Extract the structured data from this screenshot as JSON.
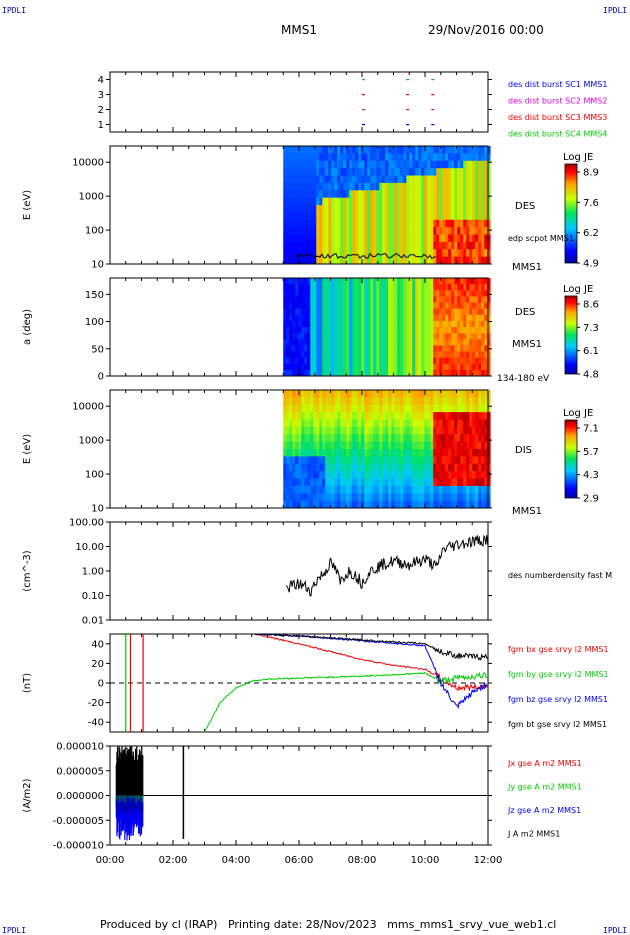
{
  "header": {
    "corner_label": "IPDLI",
    "spacecraft": "MMS1",
    "date": "29/Nov/2016 00:00"
  },
  "footer": {
    "text": "Produced by cl (IRAP)   Printing date: 28/Nov/2023   mms_mms1_srvy_vue_web1.cl"
  },
  "colors": {
    "blue": "#0000ee",
    "magenta": "#dd00dd",
    "red": "#ee0000",
    "green": "#00cc00",
    "black": "#000000"
  },
  "chart_data": [
    {
      "type": "scatter",
      "panel": "burst",
      "ylim": [
        0.5,
        4.5
      ],
      "yticks": [
        "1",
        "2",
        "3",
        "4"
      ],
      "series": [
        {
          "name": "des dist burst SC1 MMS1",
          "color": "#0000ee",
          "y": 1,
          "x": [
            8.0,
            9.4,
            10.2
          ]
        },
        {
          "name": "des dist burst SC2 MMS2",
          "color": "#dd00dd",
          "y": 2,
          "x": [
            8.0,
            9.4,
            10.2
          ]
        },
        {
          "name": "des dist burst SC3 MMS3",
          "color": "#ee0000",
          "y": 3,
          "x": [
            8.0,
            9.4,
            10.2
          ]
        },
        {
          "name": "des dist burst SC4 MMS4",
          "color": "#00cc00",
          "y": 4,
          "x": [
            8.0,
            9.4,
            10.2
          ]
        }
      ]
    },
    {
      "type": "heatmap",
      "panel": "des-energy",
      "ylabel": "E (eV)",
      "ylog": true,
      "ylim": [
        10,
        30000
      ],
      "yticks": [
        "10",
        "100",
        "1000",
        "10000"
      ],
      "xlim": [
        0,
        12
      ],
      "data_start": 5.5,
      "label": "DES",
      "sc_label": "MMS1",
      "overlay_label": "edp scpot MMS1",
      "colorbar": {
        "title": "Log JE",
        "ticks": [
          "8.9",
          "7.6",
          "6.2",
          "4.9"
        ]
      }
    },
    {
      "type": "heatmap",
      "panel": "des-pitch",
      "ylabel": "a (deg)",
      "ylim": [
        0,
        180
      ],
      "yticks": [
        "0",
        "50",
        "100",
        "150"
      ],
      "xlim": [
        0,
        12
      ],
      "data_start": 5.5,
      "label": "DES",
      "sc_label": "MMS1",
      "energy_label": "134-180 eV",
      "colorbar": {
        "title": "Log JE",
        "ticks": [
          "8.6",
          "7.3",
          "6.1",
          "4.8"
        ]
      }
    },
    {
      "type": "heatmap",
      "panel": "dis-energy",
      "ylabel": "E (eV)",
      "ylog": true,
      "ylim": [
        10,
        30000
      ],
      "yticks": [
        "10",
        "100",
        "1000",
        "10000"
      ],
      "xlim": [
        0,
        12
      ],
      "data_start": 5.5,
      "label": "DIS",
      "sc_label": "MMS1",
      "colorbar": {
        "title": "Log JE",
        "ticks": [
          "7.1",
          "5.7",
          "4.3",
          "2.9"
        ]
      }
    },
    {
      "type": "line",
      "panel": "density",
      "ylabel": "(cm^-3)",
      "ylog": true,
      "ylim": [
        0.01,
        100
      ],
      "yticks": [
        "0.01",
        "0.10",
        "1.00",
        "10.00",
        "100.00"
      ],
      "series": [
        {
          "name": "des numberdensity fast M",
          "color": "#000000",
          "x": [
            5.6,
            6.0,
            6.4,
            6.8,
            7.0,
            7.3,
            7.6,
            8.0,
            8.5,
            9.0,
            9.5,
            10.0,
            10.4,
            10.6,
            11.0,
            11.5,
            12.0
          ],
          "y": [
            0.2,
            0.3,
            0.15,
            0.8,
            2.0,
            0.3,
            1.0,
            0.3,
            1.5,
            2.5,
            1.8,
            3.0,
            1.2,
            8.0,
            12.0,
            16.0,
            20.0
          ]
        }
      ]
    },
    {
      "type": "line",
      "panel": "magnetic",
      "ylabel": "(nT)",
      "ylim": [
        -50,
        50
      ],
      "yticks": [
        "-40",
        "-20",
        "0",
        "20",
        "40"
      ],
      "series": [
        {
          "name": "fgm bx gse srvy l2 MMS1",
          "color": "#ee0000",
          "x": [
            4.6,
            6.0,
            7.0,
            8.0,
            9.0,
            10.0,
            10.5,
            11.0,
            12.0
          ],
          "y": [
            50,
            40,
            32,
            24,
            18,
            14,
            5,
            -5,
            -3
          ]
        },
        {
          "name": "fgm by gse srvy l2 MMS1",
          "color": "#00cc00",
          "x": [
            3.0,
            3.5,
            4.0,
            4.5,
            5.0,
            6.0,
            8.0,
            10.0,
            10.5,
            11.0,
            12.0
          ],
          "y": [
            -50,
            -20,
            -5,
            2,
            4,
            5,
            7,
            10,
            2,
            5,
            8
          ]
        },
        {
          "name": "fgm bz gse srvy l2 MMS1",
          "color": "#0000ee",
          "x": [
            4.6,
            6.0,
            8.0,
            10.0,
            10.5,
            11.0,
            11.5,
            12.0
          ],
          "y": [
            50,
            48,
            43,
            38,
            0,
            -25,
            -10,
            0
          ]
        },
        {
          "name": "fgm bt gse srvy l2 MMS1",
          "color": "#000000",
          "x": [
            4.6,
            6.0,
            8.0,
            10.0,
            10.5,
            11.0,
            12.0
          ],
          "y": [
            50,
            48,
            44,
            40,
            32,
            28,
            26
          ]
        }
      ]
    },
    {
      "type": "line",
      "panel": "current",
      "ylabel": "(A/m2)",
      "ylim": [
        -0.0001,
        0.0001
      ],
      "yticks": [
        "-0.000010",
        "-0.000005",
        "0.000000",
        "0.000005",
        "0.000010"
      ],
      "series": [
        {
          "name": "Jx gse A m2 MMS1",
          "color": "#ee0000"
        },
        {
          "name": "Jy gse A m2 MMS1",
          "color": "#00cc00"
        },
        {
          "name": "Jz gse A m2 MMS1",
          "color": "#0000ee"
        },
        {
          "name": "J A m2 MMS1",
          "color": "#000000"
        }
      ]
    },
    {
      "panel": "time-axis",
      "xlim": [
        0,
        12
      ],
      "xticks": [
        "00:00",
        "02:00",
        "04:00",
        "06:00",
        "08:00",
        "10:00",
        "12:00"
      ]
    }
  ]
}
